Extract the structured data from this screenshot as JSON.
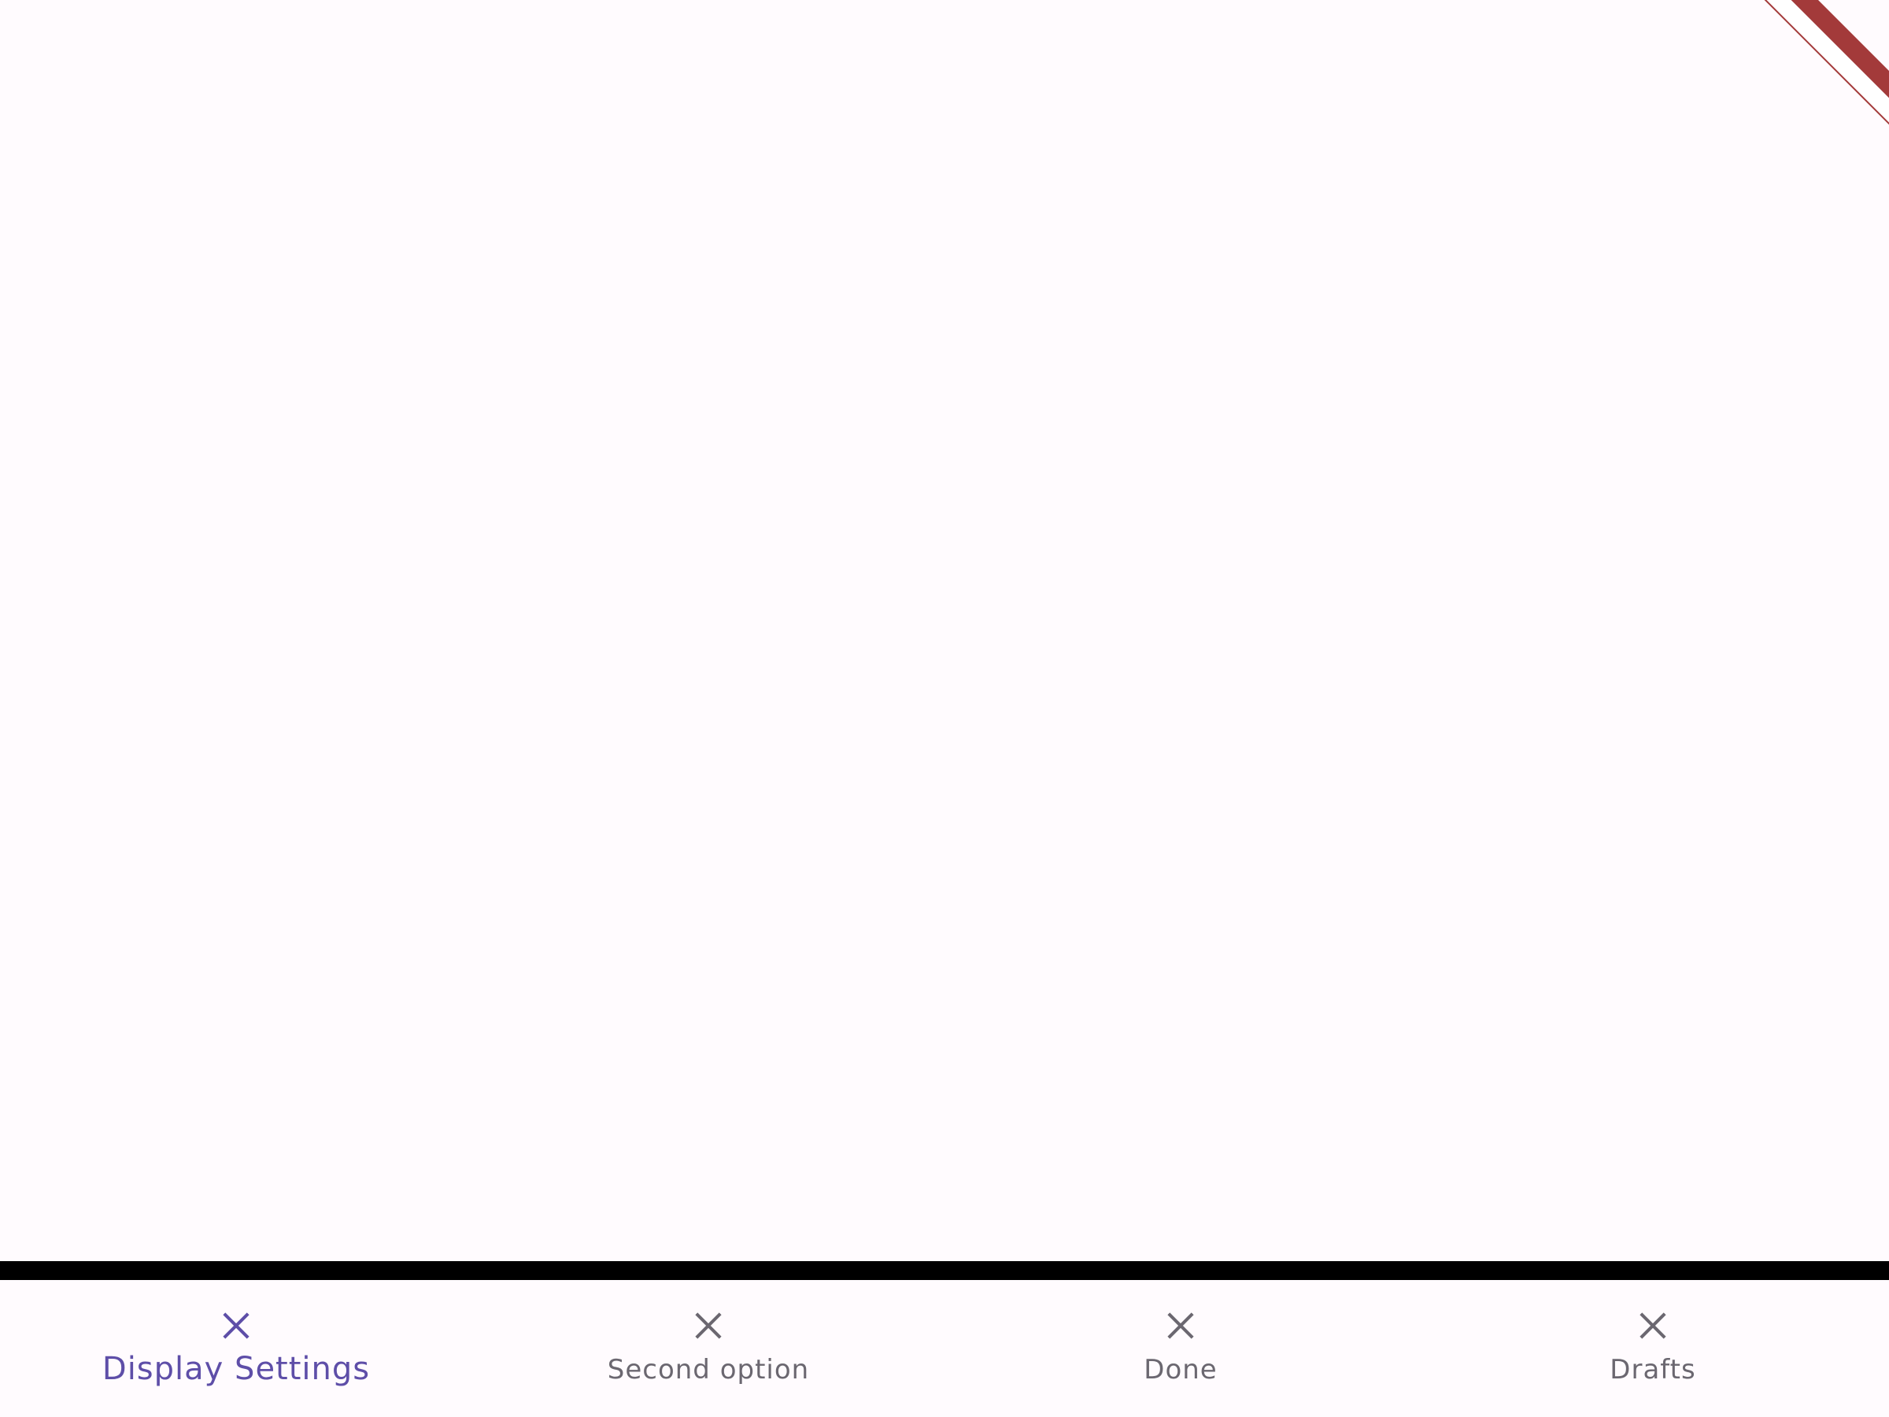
{
  "colors": {
    "background": "#fffbfe",
    "active": "#5e4ea8",
    "inactive": "#6b6770",
    "banner": "#a33a3a"
  },
  "bottom_nav": {
    "selected_index": 0,
    "items": [
      {
        "label": "Display Settings",
        "icon": "close-icon",
        "active": true
      },
      {
        "label": "Second option",
        "icon": "close-icon",
        "active": false
      },
      {
        "label": "Done",
        "icon": "close-icon",
        "active": false
      },
      {
        "label": "Drafts",
        "icon": "close-icon",
        "active": false
      }
    ]
  }
}
